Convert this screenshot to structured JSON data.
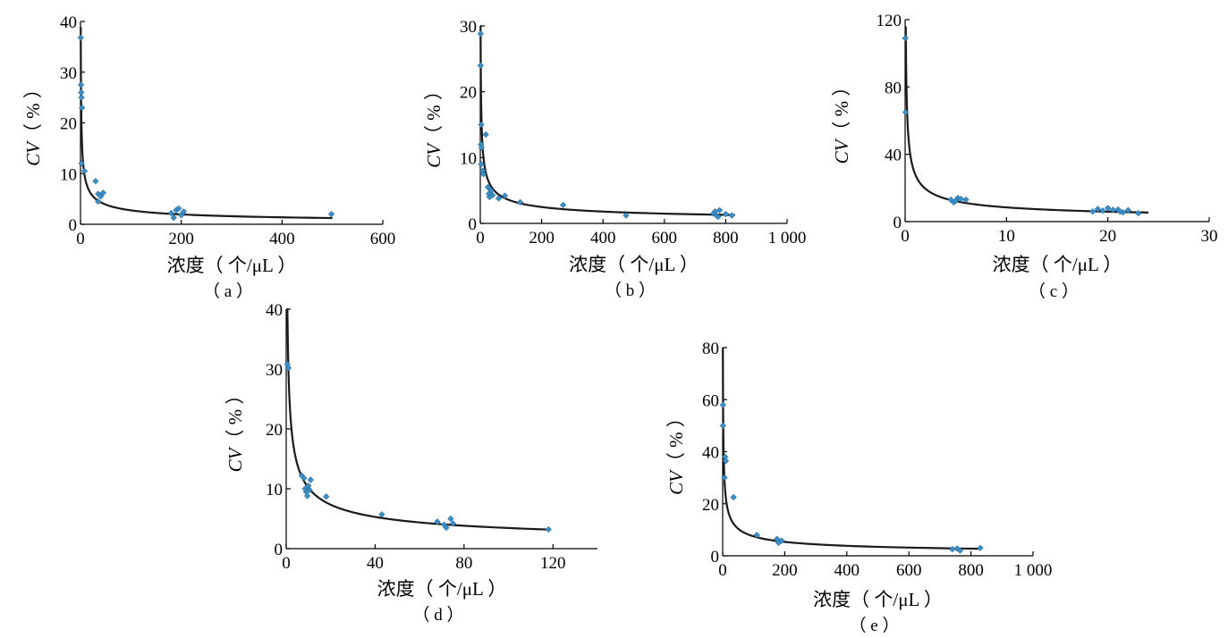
{
  "chart_data": [
    {
      "panel": "a",
      "type": "scatter",
      "panel_label": "（ a ）",
      "xlabel": "浓度（ 个/μL ）",
      "ylabel_italic": "CV",
      "ylabel_rest": "（ % ）",
      "xlim": [
        0,
        600
      ],
      "ylim": [
        0,
        40
      ],
      "xticks": [
        0,
        200,
        400,
        600
      ],
      "xtick_labels": [
        "0",
        "200",
        "400",
        "600"
      ],
      "yticks": [
        0,
        10,
        20,
        30,
        40
      ],
      "ytick_labels": [
        "0",
        "10",
        "20",
        "30",
        "40"
      ],
      "fit": {
        "model": "power",
        "a": 27.5,
        "b": -0.5,
        "x_range": [
          0.5,
          500
        ]
      },
      "points": [
        {
          "x": 0.5,
          "y": 36.8
        },
        {
          "x": 1,
          "y": 27.5
        },
        {
          "x": 1.5,
          "y": 26
        },
        {
          "x": 2,
          "y": 25
        },
        {
          "x": 3,
          "y": 23
        },
        {
          "x": 2,
          "y": 12
        },
        {
          "x": 8,
          "y": 10.5
        },
        {
          "x": 30,
          "y": 8.5
        },
        {
          "x": 35,
          "y": 6
        },
        {
          "x": 35,
          "y": 4.5
        },
        {
          "x": 40,
          "y": 5.5
        },
        {
          "x": 45,
          "y": 6.2
        },
        {
          "x": 180,
          "y": 2.2
        },
        {
          "x": 185,
          "y": 1.3
        },
        {
          "x": 190,
          "y": 2.8
        },
        {
          "x": 195,
          "y": 3.1
        },
        {
          "x": 200,
          "y": 1.8
        },
        {
          "x": 205,
          "y": 2.5
        },
        {
          "x": 498,
          "y": 2
        }
      ]
    },
    {
      "panel": "b",
      "type": "scatter",
      "panel_label": "（ b ）",
      "xlabel": "浓度（ 个/μL ）",
      "ylabel_italic": "CV",
      "ylabel_rest": "（ % ）",
      "xlim": [
        0,
        1000
      ],
      "ylim": [
        0,
        30
      ],
      "xticks": [
        0,
        200,
        400,
        600,
        800,
        1000
      ],
      "xtick_labels": [
        "0",
        "200",
        "400",
        "600",
        "800",
        "1 000"
      ],
      "yticks": [
        0,
        10,
        20,
        30
      ],
      "ytick_labels": [
        "0",
        "10",
        "20",
        "30"
      ],
      "fit": {
        "model": "power",
        "a": 30,
        "b": -0.47,
        "x_range": [
          0.8,
          830
        ]
      },
      "points": [
        {
          "x": 1,
          "y": 28.8
        },
        {
          "x": 1,
          "y": 24
        },
        {
          "x": 3,
          "y": 15
        },
        {
          "x": 2,
          "y": 12
        },
        {
          "x": 4,
          "y": 11.5
        },
        {
          "x": 3,
          "y": 9
        },
        {
          "x": 8,
          "y": 8
        },
        {
          "x": 10,
          "y": 7.5
        },
        {
          "x": 18,
          "y": 13.5
        },
        {
          "x": 25,
          "y": 5.5
        },
        {
          "x": 28,
          "y": 4.5
        },
        {
          "x": 30,
          "y": 4
        },
        {
          "x": 35,
          "y": 5
        },
        {
          "x": 40,
          "y": 4.3
        },
        {
          "x": 60,
          "y": 3.8
        },
        {
          "x": 80,
          "y": 4.2
        },
        {
          "x": 130,
          "y": 3.2
        },
        {
          "x": 270,
          "y": 2.8
        },
        {
          "x": 475,
          "y": 1.2
        },
        {
          "x": 760,
          "y": 1.5
        },
        {
          "x": 765,
          "y": 1.8
        },
        {
          "x": 770,
          "y": 1.2
        },
        {
          "x": 775,
          "y": 1
        },
        {
          "x": 780,
          "y": 2
        },
        {
          "x": 800,
          "y": 1.4
        },
        {
          "x": 820,
          "y": 1.2
        }
      ]
    },
    {
      "panel": "c",
      "type": "scatter",
      "panel_label": "（ c ）",
      "xlabel": "浓度（ 个/μL ）",
      "ylabel_italic": "CV",
      "ylabel_rest": "（ % ）",
      "xlim": [
        0,
        30
      ],
      "ylim": [
        0,
        120
      ],
      "xticks": [
        0,
        10,
        20,
        30
      ],
      "xtick_labels": [
        "0",
        "10",
        "20",
        "30"
      ],
      "yticks": [
        0,
        40,
        80,
        120
      ],
      "ytick_labels": [
        "0",
        "40",
        "80",
        "120"
      ],
      "fit": {
        "model": "power",
        "a": 28,
        "b": -0.52,
        "x_range": [
          0.065,
          24
        ]
      },
      "points": [
        {
          "x": 0.02,
          "y": 109
        },
        {
          "x": 0.05,
          "y": 65
        },
        {
          "x": 4.5,
          "y": 13
        },
        {
          "x": 4.8,
          "y": 11.5
        },
        {
          "x": 5,
          "y": 12.5
        },
        {
          "x": 5.2,
          "y": 14
        },
        {
          "x": 5.5,
          "y": 13.5
        },
        {
          "x": 6,
          "y": 13
        },
        {
          "x": 18.5,
          "y": 6
        },
        {
          "x": 19,
          "y": 7.5
        },
        {
          "x": 19.5,
          "y": 6.5
        },
        {
          "x": 20,
          "y": 8
        },
        {
          "x": 20.5,
          "y": 7
        },
        {
          "x": 21,
          "y": 7.2
        },
        {
          "x": 21.2,
          "y": 6
        },
        {
          "x": 21.5,
          "y": 5.5
        },
        {
          "x": 22,
          "y": 6.8
        },
        {
          "x": 23,
          "y": 5
        }
      ]
    },
    {
      "panel": "d",
      "type": "scatter",
      "panel_label": "（ d ）",
      "xlabel": "浓度（ 个/μL ）",
      "ylabel_italic": "CV",
      "ylabel_rest": "（ % ）",
      "xlim": [
        0,
        140
      ],
      "ylim": [
        0,
        40
      ],
      "xticks": [
        0,
        40,
        80,
        120
      ],
      "xtick_labels": [
        "0",
        "40",
        "80",
        "120"
      ],
      "yticks": [
        0,
        10,
        20,
        30,
        40
      ],
      "ytick_labels": [
        "0",
        "10",
        "20",
        "30",
        "40"
      ],
      "fit": {
        "model": "power",
        "a": 30,
        "b": -0.47,
        "x_range": [
          0.5,
          118
        ]
      },
      "points": [
        {
          "x": 0.5,
          "y": 30.8
        },
        {
          "x": 1,
          "y": 30.2
        },
        {
          "x": 7,
          "y": 12.2
        },
        {
          "x": 8,
          "y": 11.8
        },
        {
          "x": 8.5,
          "y": 10
        },
        {
          "x": 9,
          "y": 9.5
        },
        {
          "x": 9.5,
          "y": 8.8
        },
        {
          "x": 10,
          "y": 10.5
        },
        {
          "x": 10.5,
          "y": 9.8
        },
        {
          "x": 11,
          "y": 11.5
        },
        {
          "x": 18,
          "y": 8.7
        },
        {
          "x": 43,
          "y": 5.7
        },
        {
          "x": 68,
          "y": 4.5
        },
        {
          "x": 71,
          "y": 4
        },
        {
          "x": 72,
          "y": 3.5
        },
        {
          "x": 74,
          "y": 5
        },
        {
          "x": 75,
          "y": 4.2
        },
        {
          "x": 118,
          "y": 3.2
        }
      ]
    },
    {
      "panel": "e",
      "type": "scatter",
      "panel_label": "（ e ）",
      "xlabel": "浓度（ 个/μL ）",
      "ylabel_italic": "CV",
      "ylabel_rest": "（ % ）",
      "xlim": [
        0,
        1000
      ],
      "ylim": [
        0,
        80
      ],
      "xticks": [
        0,
        200,
        400,
        600,
        800,
        1000
      ],
      "xtick_labels": [
        "0",
        "200",
        "400",
        "600",
        "800",
        "1 000"
      ],
      "yticks": [
        0,
        20,
        40,
        60,
        80
      ],
      "ytick_labels": [
        "0",
        "20",
        "40",
        "60",
        "80"
      ],
      "fit": {
        "model": "power",
        "a": 68,
        "b": -0.48,
        "x_range": [
          0.7,
          830
        ]
      },
      "points": [
        {
          "x": 1,
          "y": 58
        },
        {
          "x": 1,
          "y": 50
        },
        {
          "x": 8,
          "y": 38
        },
        {
          "x": 10,
          "y": 36.5
        },
        {
          "x": 6,
          "y": 30
        },
        {
          "x": 35,
          "y": 22.5
        },
        {
          "x": 110,
          "y": 8
        },
        {
          "x": 175,
          "y": 6.5
        },
        {
          "x": 180,
          "y": 5
        },
        {
          "x": 190,
          "y": 5.8
        },
        {
          "x": 740,
          "y": 2.5
        },
        {
          "x": 755,
          "y": 2.8
        },
        {
          "x": 765,
          "y": 2
        },
        {
          "x": 830,
          "y": 3
        }
      ]
    }
  ]
}
